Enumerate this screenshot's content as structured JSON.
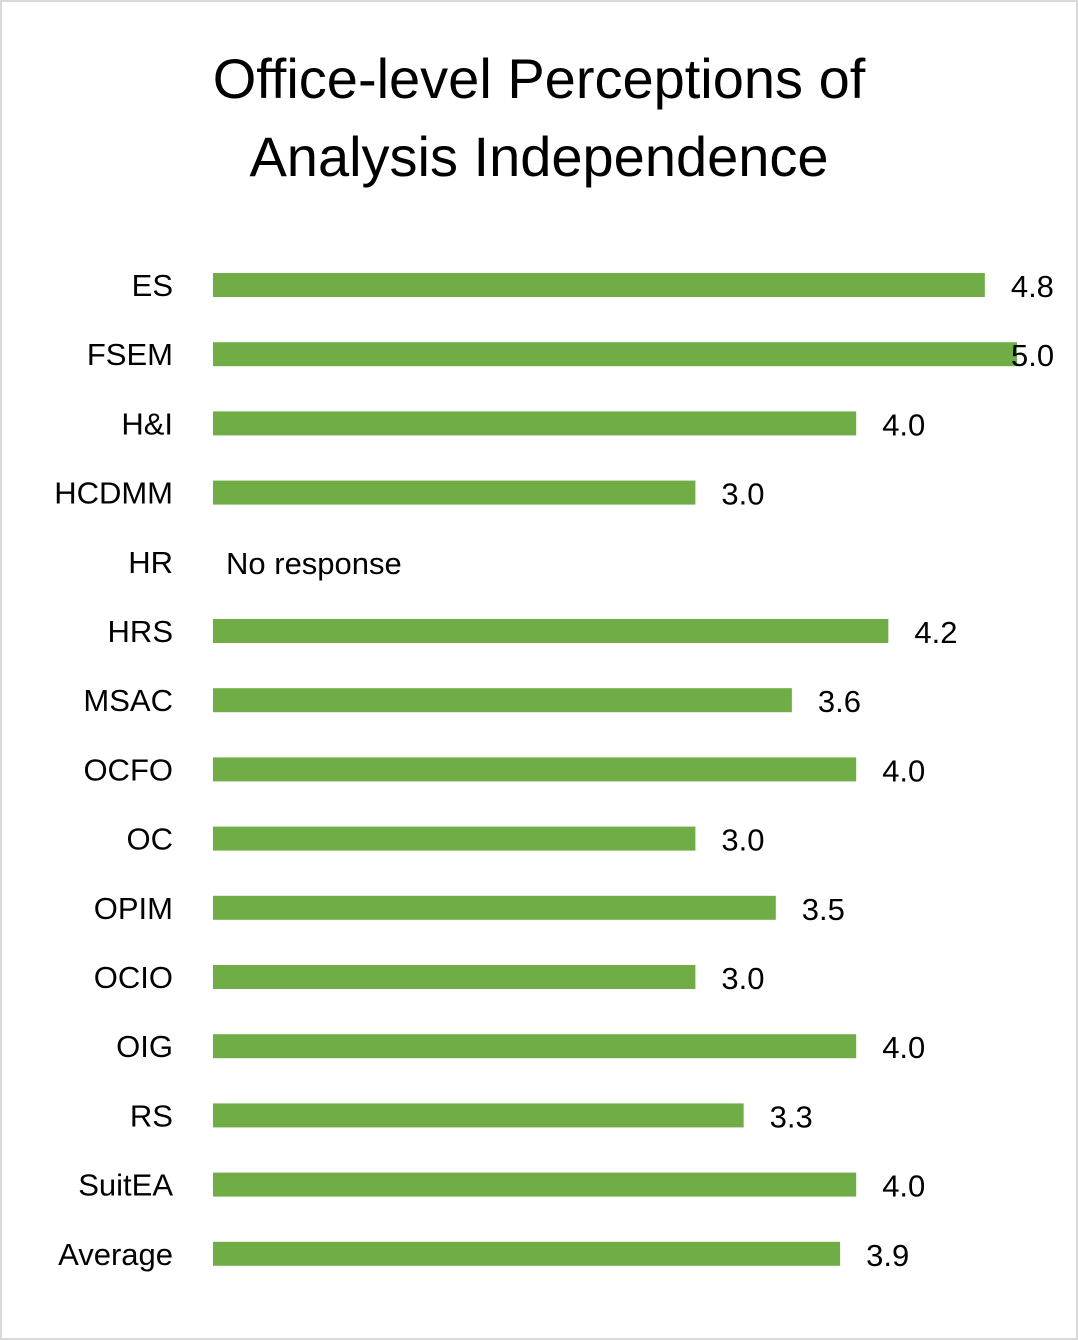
{
  "chart_data": {
    "type": "bar",
    "orientation": "horizontal",
    "title_lines": [
      "Office-level Perceptions of",
      "Analysis Independence"
    ],
    "categories": [
      "ES",
      "FSEM",
      "H&I",
      "HCDMM",
      "HR",
      "HRS",
      "MSAC",
      "OCFO",
      "OC",
      "OPIM",
      "OCIO",
      "OIG",
      "RS",
      "SuitEA",
      "Average"
    ],
    "values": [
      4.8,
      5.0,
      4.0,
      3.0,
      null,
      4.2,
      3.6,
      4.0,
      3.0,
      3.5,
      3.0,
      4.0,
      3.3,
      4.0,
      3.9
    ],
    "data_labels": [
      "4.8",
      "5.0",
      "4.0",
      "3.0",
      "No response",
      "4.2",
      "3.6",
      "4.0",
      "3.0",
      "3.5",
      "3.0",
      "4.0",
      "3.3",
      "4.0",
      "3.9"
    ],
    "xlim": [
      0,
      5
    ],
    "bar_color": "#70ad47",
    "grid": false,
    "axes_visible": false,
    "legend": "none"
  }
}
